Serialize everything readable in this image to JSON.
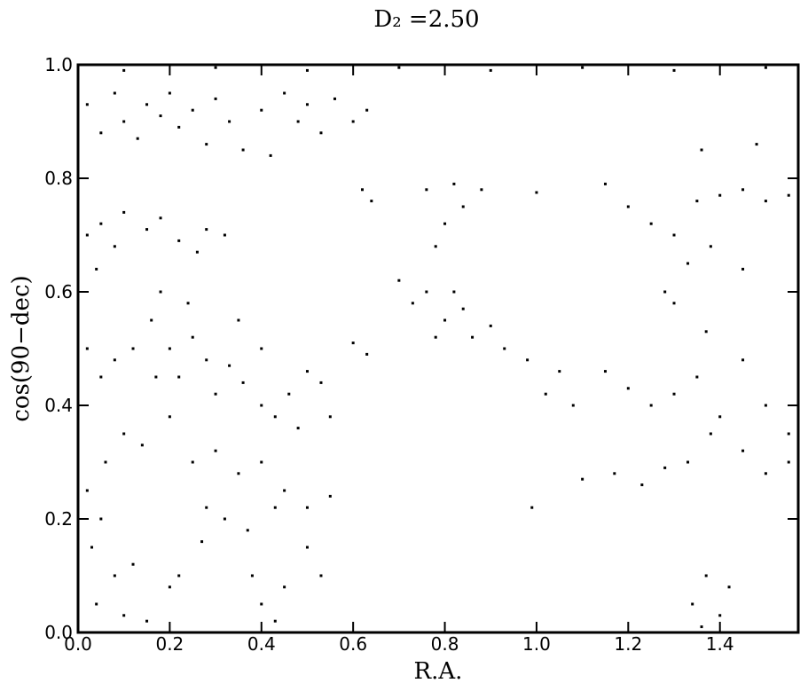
{
  "chart_data": {
    "type": "scatter",
    "title": "D₂ =2.50",
    "xlabel": "R.A.",
    "ylabel": "cos(90−dec)",
    "color": "#000000",
    "xlim": [
      0,
      1.5708
    ],
    "ylim": [
      0,
      1
    ],
    "xticks": [
      {
        "value": 0,
        "label": "0.0"
      },
      {
        "value": 0.2,
        "label": "0.2"
      },
      {
        "value": 0.4,
        "label": "0.4"
      },
      {
        "value": 0.6,
        "label": "0.6"
      },
      {
        "value": 0.8,
        "label": "0.8"
      },
      {
        "value": 1,
        "label": "1.0"
      },
      {
        "value": 1.2,
        "label": "1.2"
      },
      {
        "value": 1.4,
        "label": "1.4"
      }
    ],
    "yticks": [
      {
        "value": 0,
        "label": "0.0"
      },
      0.2,
      0.4,
      0.6,
      0.8,
      {
        "value": 1,
        "label": "1.0"
      }
    ],
    "x": [
      0.02,
      0.05,
      0.08,
      0.1,
      0.13,
      0.15,
      0.18,
      0.2,
      0.22,
      0.25,
      0.28,
      0.3,
      0.33,
      0.36,
      0.4,
      0.42,
      0.45,
      0.48,
      0.5,
      0.53,
      0.56,
      0.6,
      0.63,
      0.1,
      0.3,
      0.5,
      0.7,
      0.9,
      1.1,
      1.3,
      1.5,
      0.02,
      0.05,
      0.08,
      0.1,
      0.15,
      0.18,
      0.22,
      0.26,
      0.28,
      0.32,
      0.04,
      0.62,
      0.64,
      0.76,
      0.8,
      0.78,
      0.84,
      0.88,
      0.82,
      1.0,
      1.15,
      1.2,
      1.25,
      1.3,
      1.33,
      1.28,
      1.35,
      1.4,
      1.45,
      1.5,
      1.55,
      1.36,
      1.48,
      1.45,
      1.3,
      1.38,
      0.7,
      0.73,
      0.76,
      0.8,
      0.84,
      0.86,
      0.9,
      0.93,
      0.78,
      0.82,
      0.6,
      0.63,
      0.98,
      1.02,
      1.05,
      1.08,
      0.99,
      1.15,
      1.2,
      1.25,
      1.3,
      1.35,
      1.4,
      1.45,
      1.5,
      1.55,
      1.1,
      1.17,
      1.23,
      1.28,
      1.33,
      1.38,
      1.45,
      1.5,
      1.55,
      1.37,
      1.34,
      1.37,
      1.4,
      1.42,
      1.36,
      0.02,
      0.05,
      0.08,
      0.12,
      0.16,
      0.18,
      0.2,
      0.22,
      0.25,
      0.28,
      0.3,
      0.33,
      0.36,
      0.4,
      0.43,
      0.46,
      0.5,
      0.53,
      0.55,
      0.48,
      0.1,
      0.14,
      0.2,
      0.25,
      0.3,
      0.35,
      0.4,
      0.45,
      0.5,
      0.55,
      0.28,
      0.32,
      0.27,
      0.37,
      0.43,
      0.5,
      0.53,
      0.02,
      0.05,
      0.03,
      0.08,
      0.12,
      0.04,
      0.1,
      0.15,
      0.2,
      0.22,
      0.38,
      0.4,
      0.43,
      0.45,
      0.17,
      0.24,
      0.06,
      0.4,
      0.35
    ],
    "values": [
      0.93,
      0.88,
      0.95,
      0.9,
      0.87,
      0.93,
      0.91,
      0.95,
      0.89,
      0.92,
      0.86,
      0.94,
      0.9,
      0.85,
      0.92,
      0.84,
      0.95,
      0.9,
      0.93,
      0.88,
      0.94,
      0.9,
      0.92,
      0.99,
      0.995,
      0.99,
      0.995,
      0.99,
      0.995,
      0.99,
      0.995,
      0.7,
      0.72,
      0.68,
      0.74,
      0.71,
      0.73,
      0.69,
      0.67,
      0.71,
      0.7,
      0.64,
      0.78,
      0.76,
      0.78,
      0.72,
      0.68,
      0.75,
      0.78,
      0.79,
      0.775,
      0.79,
      0.75,
      0.72,
      0.7,
      0.65,
      0.6,
      0.76,
      0.77,
      0.78,
      0.76,
      0.77,
      0.85,
      0.86,
      0.64,
      0.58,
      0.68,
      0.62,
      0.58,
      0.6,
      0.55,
      0.57,
      0.52,
      0.54,
      0.5,
      0.52,
      0.6,
      0.51,
      0.49,
      0.48,
      0.42,
      0.46,
      0.4,
      0.22,
      0.46,
      0.43,
      0.4,
      0.42,
      0.45,
      0.38,
      0.48,
      0.4,
      0.35,
      0.27,
      0.28,
      0.26,
      0.29,
      0.3,
      0.35,
      0.32,
      0.28,
      0.3,
      0.53,
      0.05,
      0.1,
      0.03,
      0.08,
      0.01,
      0.5,
      0.45,
      0.48,
      0.5,
      0.55,
      0.6,
      0.5,
      0.45,
      0.52,
      0.48,
      0.42,
      0.47,
      0.44,
      0.4,
      0.38,
      0.42,
      0.46,
      0.44,
      0.38,
      0.36,
      0.35,
      0.33,
      0.38,
      0.3,
      0.32,
      0.28,
      0.3,
      0.25,
      0.22,
      0.24,
      0.22,
      0.2,
      0.16,
      0.18,
      0.22,
      0.15,
      0.1,
      0.25,
      0.2,
      0.15,
      0.1,
      0.12,
      0.05,
      0.03,
      0.02,
      0.08,
      0.1,
      0.1,
      0.05,
      0.02,
      0.08,
      0.45,
      0.58,
      0.3,
      0.5,
      0.55
    ]
  }
}
